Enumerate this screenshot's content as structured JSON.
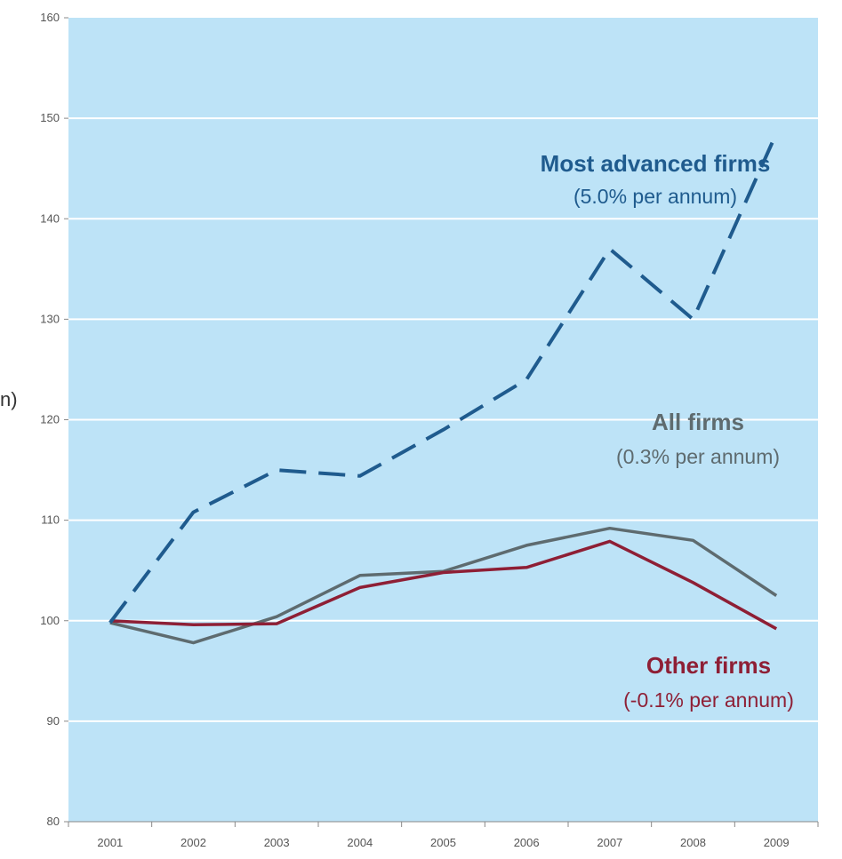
{
  "chart_data": {
    "type": "line",
    "title": "",
    "xlabel": "",
    "ylabel": "n)",
    "x": [
      "2001",
      "2002",
      "2003",
      "2004",
      "2005",
      "2006",
      "2007",
      "2008",
      "2009"
    ],
    "y_ticks": [
      "80",
      "90",
      "100",
      "110",
      "120",
      "130",
      "140",
      "150",
      "160"
    ],
    "ylim": [
      80,
      160
    ],
    "grid": "horizontal",
    "legend": "none",
    "colors": {
      "plot_background": "#bde3f7",
      "grid": "#ffffff",
      "most_advanced": "#1f5b8e",
      "all_firms": "#5e6b6f",
      "other_firms": "#8e1f35"
    },
    "series": [
      {
        "key": "most_advanced",
        "name": "Most advanced firms",
        "note": "(5.0% per annum)",
        "style": "dashed",
        "values": [
          99.8,
          110.8,
          115.0,
          114.4,
          119.0,
          124.0,
          137.0,
          130.0,
          148.5
        ]
      },
      {
        "key": "all_firms",
        "name": "All firms",
        "note": "(0.3% per annum)",
        "style": "solid",
        "values": [
          99.8,
          97.8,
          100.4,
          104.5,
          104.9,
          107.5,
          109.2,
          108.0,
          102.5
        ]
      },
      {
        "key": "other_firms",
        "name": "Other firms",
        "note": "(-0.1% per annum)",
        "style": "solid",
        "values": [
          100.0,
          99.6,
          99.7,
          103.3,
          104.8,
          105.3,
          107.9,
          103.8,
          99.2
        ]
      }
    ]
  }
}
